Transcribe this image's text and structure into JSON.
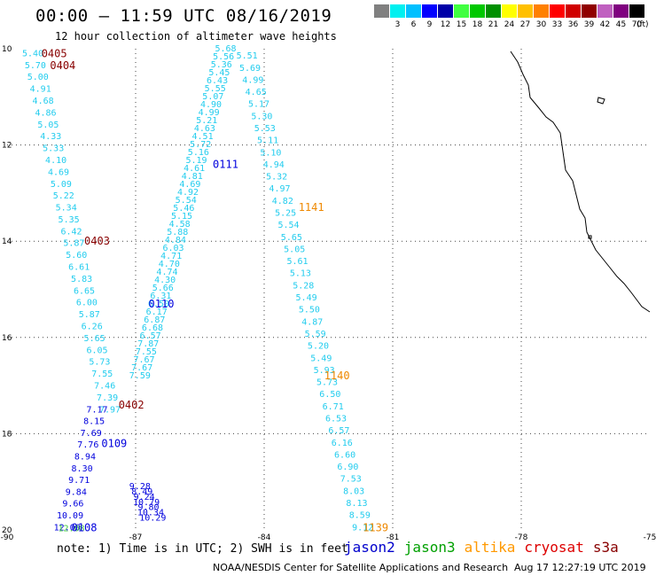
{
  "header": {
    "title": "00:00 – 11:59 UTC 08/16/2019",
    "subtitle": "12 hour collection of altimeter wave heights"
  },
  "legend": {
    "units": "(ft)",
    "bins": [
      {
        "label": "",
        "color": "#808080"
      },
      {
        "label": "3",
        "color": "#00f0f0"
      },
      {
        "label": "6",
        "color": "#00c0ff"
      },
      {
        "label": "9",
        "color": "#0000ff"
      },
      {
        "label": "12",
        "color": "#0000a8"
      },
      {
        "label": "15",
        "color": "#40ff40"
      },
      {
        "label": "18",
        "color": "#00c800"
      },
      {
        "label": "21",
        "color": "#009000"
      },
      {
        "label": "24",
        "color": "#ffff00"
      },
      {
        "label": "27",
        "color": "#ffc000"
      },
      {
        "label": "30",
        "color": "#ff8000"
      },
      {
        "label": "33",
        "color": "#ff0000"
      },
      {
        "label": "36",
        "color": "#d00000"
      },
      {
        "label": "39",
        "color": "#900000"
      },
      {
        "label": "42",
        "color": "#c060c0"
      },
      {
        "label": "45",
        "color": "#800080"
      },
      {
        "label": "70",
        "color": "#000000"
      }
    ]
  },
  "axes": {
    "lon_ticks": [
      "-90",
      "-87",
      "-84",
      "-81",
      "-78",
      "-75"
    ],
    "lat_ticks": [
      "10",
      "12",
      "14",
      "16",
      "18",
      "20"
    ]
  },
  "map": {
    "lon_range": [
      -90,
      -75
    ],
    "lat_range": [
      10,
      20
    ],
    "colors": {
      "cyan": "#22ccee",
      "blue": "#0000dd",
      "green": "#44cc44",
      "orange": "#ee8800",
      "maroon": "#880000"
    },
    "tracks": [
      {
        "label": "0405",
        "lon": -88.9,
        "lat": 10.1,
        "color": "maroon"
      },
      {
        "label": "0404",
        "lon": -88.7,
        "lat": 10.35,
        "color": "maroon"
      },
      {
        "label": "0403",
        "lon": -87.9,
        "lat": 14.0,
        "color": "maroon"
      },
      {
        "label": "0402",
        "lon": -87.1,
        "lat": 17.4,
        "color": "maroon"
      },
      {
        "label": "0111",
        "lon": -84.9,
        "lat": 12.4,
        "color": "blue"
      },
      {
        "label": "0110",
        "lon": -86.4,
        "lat": 15.3,
        "color": "blue"
      },
      {
        "label": "0109",
        "lon": -87.5,
        "lat": 18.2,
        "color": "blue"
      },
      {
        "label": "0108",
        "lon": -88.2,
        "lat": 19.95,
        "color": "blue"
      },
      {
        "label": "1141",
        "lon": -82.9,
        "lat": 13.3,
        "color": "orange"
      },
      {
        "label": "1140",
        "lon": -82.3,
        "lat": 16.8,
        "color": "orange"
      },
      {
        "label": "1139",
        "lon": -81.4,
        "lat": 19.95,
        "color": "orange"
      }
    ],
    "passes": [
      {
        "name": "track-0405-0402",
        "lon0": -89.4,
        "lat0": 10.1,
        "lon1": -87.6,
        "lat1": 17.5,
        "color": "cyan",
        "values": [
          "5.40",
          "5.70",
          "5.00",
          "4.91",
          "4.68",
          "4.86",
          "5.05",
          "4.33",
          "5.33",
          "4.10",
          "4.69",
          "5.09",
          "5.22",
          "5.34",
          "5.35",
          "6.42",
          "5.87",
          "5.60",
          "6.61",
          "5.83",
          "6.65",
          "6.00",
          "5.87",
          "6.26",
          "5.65",
          "6.05",
          "5.73",
          "7.55",
          "7.46",
          "7.39",
          "7.97"
        ]
      },
      {
        "name": "track-0402-0108",
        "lon0": -87.9,
        "lat0": 17.5,
        "lon1": -88.6,
        "lat1": 19.95,
        "color": "blue",
        "values": [
          "7.17",
          "8.15",
          "7.69",
          "7.76",
          "8.94",
          "8.30",
          "9.71",
          "9.84",
          "9.66",
          "10.09",
          "12.00"
        ]
      },
      {
        "name": "track-0108-end",
        "lon0": -88.5,
        "lat0": 19.97,
        "lon1": -88.5,
        "lat1": 19.97,
        "color": "green",
        "values": [
          "12.08"
        ]
      },
      {
        "name": "track-0111-0110",
        "lon0": -84.9,
        "lat0": 10.0,
        "lon1": -86.9,
        "lat1": 16.8,
        "color": "cyan",
        "values": [
          "5.68",
          "5.56",
          "5.36",
          "5.45",
          "6.43",
          "5.55",
          "5.07",
          "4.90",
          "4.99",
          "5.21",
          "4.63",
          "4.51",
          "5.72",
          "5.16",
          "5.19",
          "4.61",
          "4.81",
          "4.69",
          "4.92",
          "5.54",
          "5.46",
          "5.15",
          "4.58",
          "5.88",
          "4.84",
          "6.03",
          "4.71",
          "4.70",
          "4.74",
          "4.30",
          "5.66",
          "6.31",
          "6.50",
          "6.17",
          "6.87",
          "6.68",
          "6.57",
          "7.87",
          "7.55",
          "7.67",
          "7.67",
          "7.59"
        ]
      },
      {
        "name": "track-0109",
        "lon0": -86.9,
        "lat0": 19.1,
        "lon1": -86.6,
        "lat1": 19.75,
        "color": "blue",
        "values": [
          "9.28",
          "8.49",
          "9.24",
          "10.79",
          "9.80",
          "10.34",
          "10.29"
        ]
      },
      {
        "name": "track-1141-1139",
        "lon0": -84.4,
        "lat0": 10.15,
        "lon1": -81.7,
        "lat1": 19.95,
        "color": "cyan",
        "values": [
          "5.51",
          "5.69",
          "4.99",
          "4.65",
          "5.17",
          "5.30",
          "5.53",
          "5.11",
          "5.10",
          "4.94",
          "5.32",
          "4.97",
          "4.82",
          "5.25",
          "5.54",
          "5.65",
          "5.05",
          "5.61",
          "5.13",
          "5.28",
          "5.49",
          "5.50",
          "4.87",
          "5.59",
          "5.20",
          "5.49",
          "5.93",
          "5.73",
          "6.50",
          "6.71",
          "6.53",
          "6.57",
          "6.16",
          "6.60",
          "6.90",
          "7.53",
          "8.03",
          "8.13",
          "8.59",
          "9.12"
        ]
      }
    ]
  },
  "footer": {
    "note": "note: 1) Time is in UTC; 2) SWH is in feet",
    "satellites": [
      {
        "name": "jason2",
        "color": "#0000cc"
      },
      {
        "name": "jason3",
        "color": "#00a000"
      },
      {
        "name": "altika",
        "color": "#ff9900"
      },
      {
        "name": "cryosat",
        "color": "#dd0000"
      },
      {
        "name": "s3a",
        "color": "#880000"
      }
    ],
    "credit": "NOAA/NESDIS Center for Satellite Applications and Research",
    "timestamp": "Aug 17 12:27:19 UTC 2019"
  }
}
